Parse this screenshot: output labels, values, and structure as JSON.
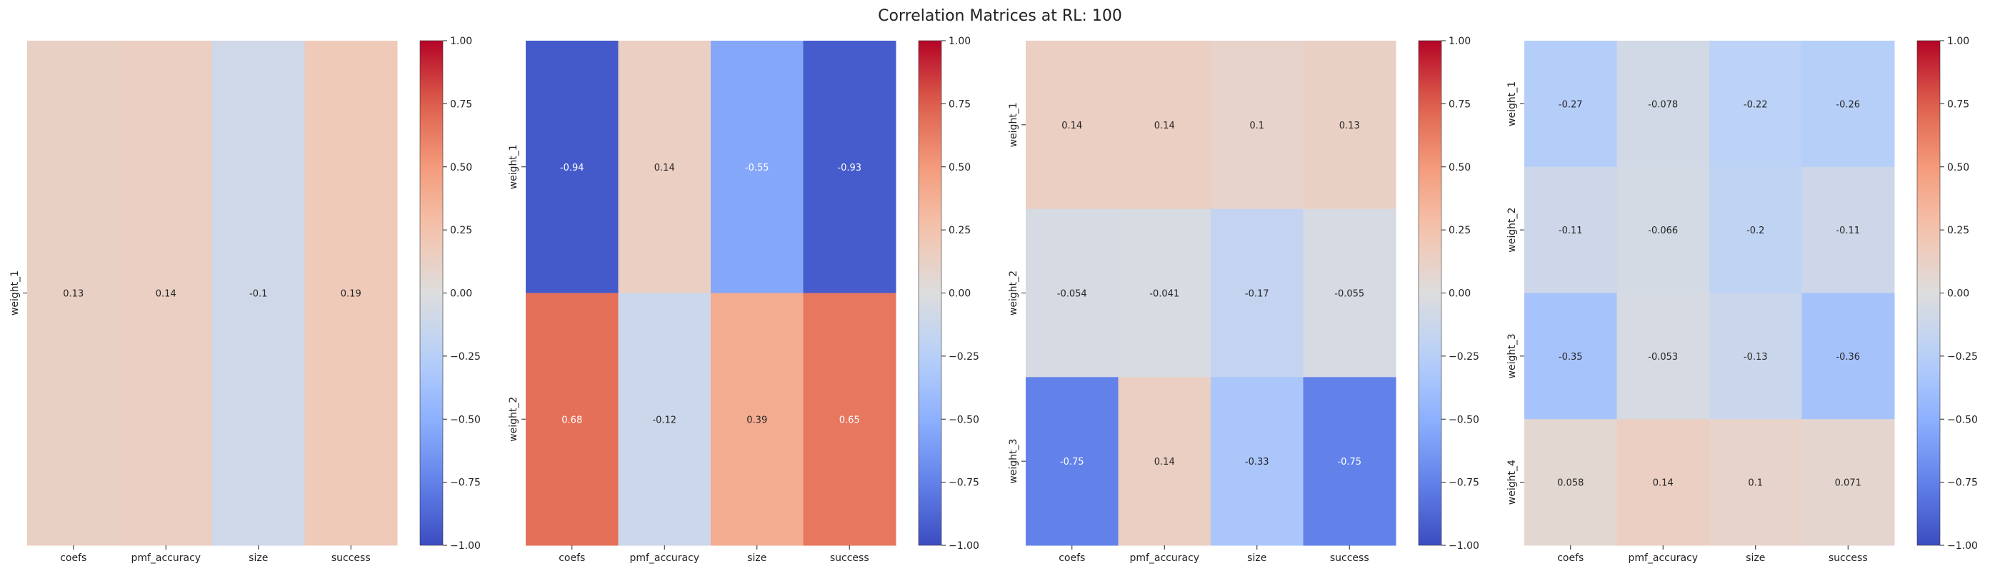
{
  "title": "Correlation Matrices at RL: 100",
  "colorbar_ticks": [
    "1.00",
    "0.75",
    "0.50",
    "0.25",
    "0.00",
    "−0.25",
    "−0.50",
    "−0.75",
    "−1.00"
  ],
  "colormap": "coolwarm",
  "chart_data": [
    {
      "type": "heatmap",
      "x_labels": [
        "coefs",
        "pmf_accuracy",
        "size",
        "success"
      ],
      "y_labels": [
        "weight_1"
      ],
      "values": [
        [
          0.13,
          0.14,
          -0.1,
          0.19
        ]
      ],
      "value_labels": [
        [
          "0.13",
          "0.14",
          "-0.1",
          "0.19"
        ]
      ],
      "vmin": -1,
      "vmax": 1
    },
    {
      "type": "heatmap",
      "x_labels": [
        "coefs",
        "pmf_accuracy",
        "size",
        "success"
      ],
      "y_labels": [
        "weight_1",
        "weight_2"
      ],
      "values": [
        [
          -0.94,
          0.14,
          -0.55,
          -0.93
        ],
        [
          0.68,
          -0.12,
          0.39,
          0.65
        ]
      ],
      "value_labels": [
        [
          "-0.94",
          "0.14",
          "-0.55",
          "-0.93"
        ],
        [
          "0.68",
          "-0.12",
          "0.39",
          "0.65"
        ]
      ],
      "vmin": -1,
      "vmax": 1
    },
    {
      "type": "heatmap",
      "x_labels": [
        "coefs",
        "pmf_accuracy",
        "size",
        "success"
      ],
      "y_labels": [
        "weight_1",
        "weight_2",
        "weight_3"
      ],
      "values": [
        [
          0.14,
          0.14,
          0.1,
          0.13
        ],
        [
          -0.054,
          -0.041,
          -0.17,
          -0.055
        ],
        [
          -0.75,
          0.14,
          -0.33,
          -0.75
        ]
      ],
      "value_labels": [
        [
          "0.14",
          "0.14",
          "0.1",
          "0.13"
        ],
        [
          "-0.054",
          "-0.041",
          "-0.17",
          "-0.055"
        ],
        [
          "-0.75",
          "0.14",
          "-0.33",
          "-0.75"
        ]
      ],
      "vmin": -1,
      "vmax": 1
    },
    {
      "type": "heatmap",
      "x_labels": [
        "coefs",
        "pmf_accuracy",
        "size",
        "success"
      ],
      "y_labels": [
        "weight_1",
        "weight_2",
        "weight_3",
        "weight_4"
      ],
      "values": [
        [
          -0.27,
          -0.078,
          -0.22,
          -0.26
        ],
        [
          -0.11,
          -0.066,
          -0.2,
          -0.11
        ],
        [
          -0.35,
          -0.053,
          -0.13,
          -0.36
        ],
        [
          0.058,
          0.14,
          0.1,
          0.071
        ]
      ],
      "value_labels": [
        [
          "-0.27",
          "-0.078",
          "-0.22",
          "-0.26"
        ],
        [
          "-0.11",
          "-0.066",
          "-0.2",
          "-0.11"
        ],
        [
          "-0.35",
          "-0.053",
          "-0.13",
          "-0.36"
        ],
        [
          "0.058",
          "0.14",
          "0.1",
          "0.071"
        ]
      ],
      "vmin": -1,
      "vmax": 1
    }
  ]
}
